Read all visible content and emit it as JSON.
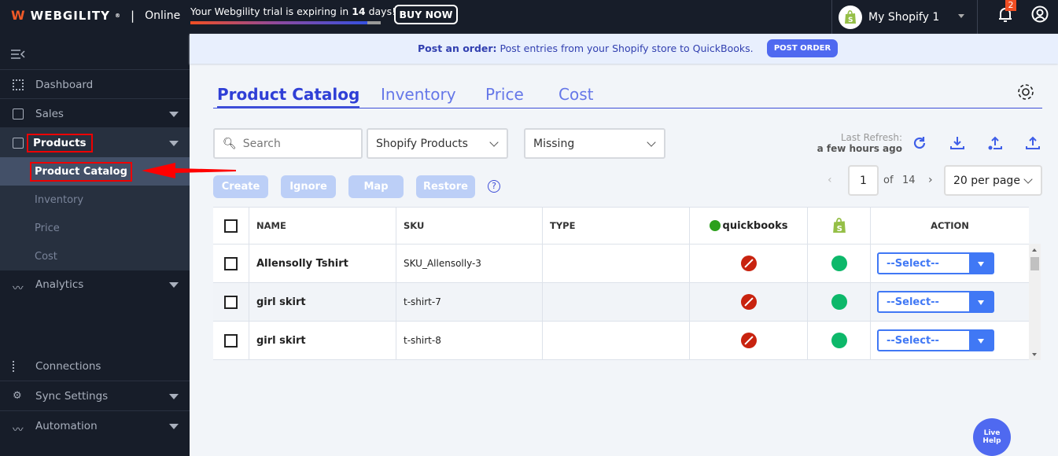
{
  "topbar": {
    "logo": "WEBGILITY",
    "logo_mark": "®",
    "separator": "|",
    "edition": "Online",
    "trial_prefix": "Your Webgility trial is expiring in ",
    "trial_days": "14",
    "trial_suffix": " days!",
    "trial_progress_percent": 93,
    "buy_now": "BUY NOW",
    "store_name": "My Shopify 1",
    "notification_count": "2"
  },
  "sidebar": {
    "items": [
      {
        "label": "Dashboard"
      },
      {
        "label": "Sales"
      },
      {
        "label": "Products"
      },
      {
        "label": "Analytics"
      },
      {
        "label": "Connections"
      },
      {
        "label": "Sync Settings"
      },
      {
        "label": "Automation"
      }
    ],
    "sub_items": [
      {
        "label": "Product Catalog"
      },
      {
        "label": "Inventory"
      },
      {
        "label": "Price"
      },
      {
        "label": "Cost"
      }
    ]
  },
  "banner": {
    "bold": "Post an order:",
    "text": " Post entries from your Shopify store to QuickBooks.",
    "button": "POST ORDER"
  },
  "tabs": [
    {
      "label": "Product Catalog"
    },
    {
      "label": "Inventory"
    },
    {
      "label": "Price"
    },
    {
      "label": "Cost"
    }
  ],
  "filters": {
    "search_placeholder": "Search",
    "source": "Shopify Products",
    "status": "Missing"
  },
  "refresh": {
    "label": "Last Refresh:",
    "value": "a few hours ago"
  },
  "actions": {
    "create": "Create",
    "ignore": "Ignore",
    "map": "Map",
    "restore": "Restore",
    "help": "?"
  },
  "pagination": {
    "page": "1",
    "of": "of",
    "total": "14",
    "per_page": "20 per page"
  },
  "table": {
    "headers": {
      "name": "NAME",
      "sku": "SKU",
      "type": "TYPE",
      "quickbooks": "quickbooks",
      "action": "ACTION"
    },
    "rows": [
      {
        "name": "Allensolly Tshirt",
        "sku": "SKU_Allensolly-3",
        "type": "",
        "quickbooks": "missing",
        "shopify": "present",
        "action": "--Select--"
      },
      {
        "name": "girl skirt",
        "sku": "t-shirt-7",
        "type": "",
        "quickbooks": "missing",
        "shopify": "present",
        "action": "--Select--"
      },
      {
        "name": "girl skirt",
        "sku": "t-shirt-8",
        "type": "",
        "quickbooks": "missing",
        "shopify": "present",
        "action": "--Select--"
      }
    ]
  },
  "live_help": {
    "line1": "Live",
    "line2": "Help"
  },
  "colors": {
    "accent": "#3e4ed8",
    "sidebar": "#171d29",
    "missing": "#c8230f",
    "present": "#0db86a"
  }
}
